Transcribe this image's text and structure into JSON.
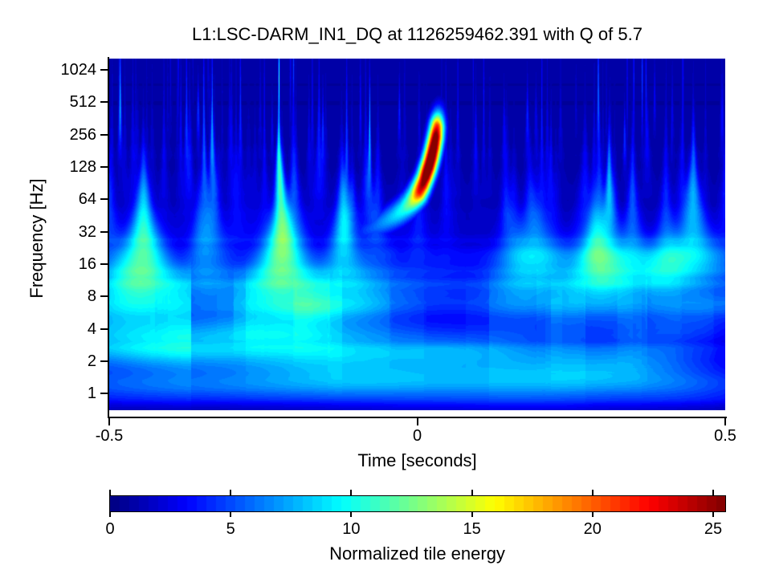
{
  "title": "L1:LSC-DARM_IN1_DQ at 1126259462.391 with Q of 5.7",
  "axes": {
    "x": {
      "label": "Time [seconds]",
      "range": [
        -0.5,
        0.5
      ],
      "ticks": [
        {
          "value": -0.5,
          "label": "-0.5"
        },
        {
          "value": 0,
          "label": "0"
        },
        {
          "value": 0.5,
          "label": "0.5"
        }
      ]
    },
    "y": {
      "label": "Frequency [Hz]",
      "scale": "log2",
      "ticks": [
        {
          "value": 1,
          "label": "1"
        },
        {
          "value": 2,
          "label": "2"
        },
        {
          "value": 4,
          "label": "4"
        },
        {
          "value": 8,
          "label": "8"
        },
        {
          "value": 16,
          "label": "16"
        },
        {
          "value": 32,
          "label": "32"
        },
        {
          "value": 64,
          "label": "64"
        },
        {
          "value": 128,
          "label": "128"
        },
        {
          "value": 256,
          "label": "256"
        },
        {
          "value": 512,
          "label": "512"
        },
        {
          "value": 1024,
          "label": "1024"
        }
      ]
    }
  },
  "colorbar": {
    "label": "Normalized tile energy",
    "colormap": "jet",
    "range": [
      0,
      25.5
    ],
    "ticks": [
      {
        "value": 0,
        "label": "0"
      },
      {
        "value": 5,
        "label": "5"
      },
      {
        "value": 10,
        "label": "10"
      },
      {
        "value": 15,
        "label": "15"
      },
      {
        "value": 20,
        "label": "20"
      },
      {
        "value": 25,
        "label": "25"
      }
    ]
  },
  "chart_data": {
    "type": "heatmap",
    "title": "L1:LSC-DARM_IN1_DQ at 1126259462.391 with Q of 5.7",
    "xlabel": "Time [seconds]",
    "ylabel": "Frequency [Hz]",
    "time_range_s": [
      -0.5,
      0.5
    ],
    "freq_range_hz": [
      0.7,
      1305
    ],
    "energy_range": [
      0,
      25.5
    ],
    "colormap": "jet",
    "description": "Q-transform spectrogram: quiet blue background with vertical noise whisps; a loud chirp sweeping up from ~30 Hz at t=-0.09 s to ~300 Hz just after t=0, peaking above 25 in normalized tile energy.",
    "chirp_track": [
      [
        -0.105,
        29,
        3
      ],
      [
        -0.085,
        32,
        4.5
      ],
      [
        -0.065,
        36,
        6
      ],
      [
        -0.048,
        41,
        7.5
      ],
      [
        -0.034,
        46,
        9
      ],
      [
        -0.022,
        52,
        10.5
      ],
      [
        -0.012,
        59,
        13
      ],
      [
        -0.004,
        67,
        17
      ],
      [
        0.003,
        77,
        23
      ],
      [
        0.009,
        91,
        26
      ],
      [
        0.014,
        110,
        29
      ],
      [
        0.019,
        134,
        30
      ],
      [
        0.023,
        163,
        30
      ],
      [
        0.0265,
        200,
        29
      ],
      [
        0.0295,
        245,
        27
      ],
      [
        0.0315,
        295,
        22
      ],
      [
        0.033,
        345,
        12
      ],
      [
        0.0342,
        395,
        6
      ],
      [
        0.0352,
        440,
        3.5
      ]
    ],
    "features": [
      {
        "t": 0.28,
        "f": 11,
        "amp": 4.6,
        "st": 0.085,
        "slf": 0.55
      },
      {
        "t": -0.072,
        "f": 19,
        "amp": 5.2,
        "st": 0.05,
        "slf": 0.45
      },
      {
        "t": -0.38,
        "f": 5.5,
        "amp": 3.0,
        "st": 0.11,
        "slf": 0.5
      },
      {
        "t": 0.1,
        "f": 4.5,
        "amp": 2.6,
        "st": 0.1,
        "slf": 0.45
      },
      {
        "t": 0.33,
        "f": 2.2,
        "amp": 2.2,
        "st": 0.12,
        "slf": 0.5
      }
    ],
    "background": {
      "seed": 20150914,
      "impulses": 150,
      "low_blobs": 55,
      "base": 0.85,
      "mid_wash": 0.55,
      "band_noise": 0.45
    }
  }
}
